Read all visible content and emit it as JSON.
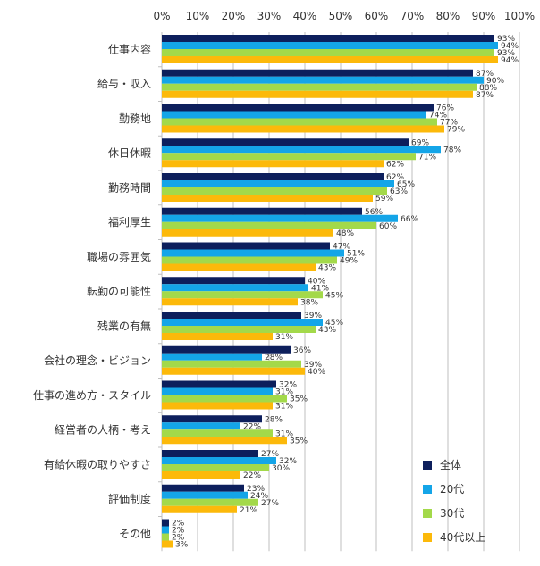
{
  "chart_data": {
    "type": "bar",
    "orientation": "horizontal",
    "title": "",
    "xlabel": "",
    "ylabel": "",
    "xlim": [
      0,
      100
    ],
    "x_ticks": [
      "0%",
      "10%",
      "20%",
      "30%",
      "40%",
      "50%",
      "60%",
      "70%",
      "80%",
      "90%",
      "100%"
    ],
    "x_tick_values": [
      0,
      10,
      20,
      30,
      40,
      50,
      60,
      70,
      80,
      90,
      100
    ],
    "value_suffix": "%",
    "grid": true,
    "legend_position": "bottom-right",
    "categories": [
      "仕事内容",
      "給与・収入",
      "勤務地",
      "休日休暇",
      "勤務時間",
      "福利厚生",
      "職場の雰囲気",
      "転勤の可能性",
      "残業の有無",
      "会社の理念・ビジョン",
      "仕事の進め方・スタイル",
      "経営者の人柄・考え",
      "有給休暇の取りやすさ",
      "評価制度",
      "その他"
    ],
    "series": [
      {
        "name": "全体",
        "color": "#0d1f5c",
        "values": [
          93,
          87,
          76,
          69,
          62,
          56,
          47,
          40,
          39,
          36,
          32,
          28,
          27,
          23,
          2
        ]
      },
      {
        "name": "20代",
        "color": "#14a5e8",
        "values": [
          94,
          90,
          74,
          78,
          65,
          66,
          51,
          41,
          45,
          28,
          31,
          22,
          32,
          24,
          2
        ]
      },
      {
        "name": "30代",
        "color": "#a3d94a",
        "values": [
          93,
          88,
          77,
          71,
          63,
          60,
          49,
          45,
          43,
          39,
          35,
          31,
          30,
          27,
          2
        ]
      },
      {
        "name": "40代以上",
        "color": "#fcb90a",
        "values": [
          94,
          87,
          79,
          62,
          59,
          48,
          43,
          38,
          31,
          40,
          31,
          35,
          22,
          21,
          3
        ]
      }
    ]
  }
}
